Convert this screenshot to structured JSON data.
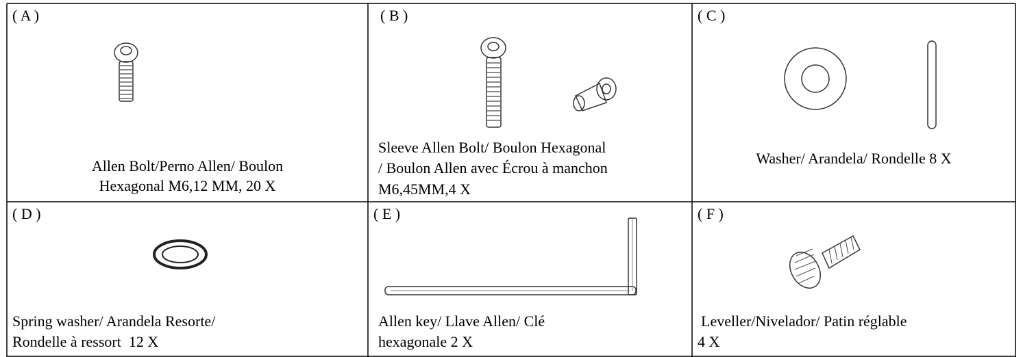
{
  "cells": [
    {
      "label": "( A )",
      "lines": [
        "Allen Bolt/Perno Allen/ Boulon",
        "Hexagonal M6,12 MM, 20 X"
      ]
    },
    {
      "label": "( B )",
      "lines": [
        "Sleeve Allen Bolt/ Boulon Hexagonal",
        "/ Boulon Allen avec Écrou à manchon",
        "M6,45MM,4 X"
      ]
    },
    {
      "label": "( C )",
      "lines": [
        "Washer/ Arandela/ Rondelle 8 X"
      ]
    },
    {
      "label": "( D )",
      "lines": [
        "Spring washer/ Arandela Resorte/",
        "Rondelle à ressort  12 X"
      ]
    },
    {
      "label": "( E )",
      "lines": [
        "Allen key/ Llave Allen/ Clé",
        "hexagonale 2 X"
      ]
    },
    {
      "label": "( F )",
      "lines": [
        "Leveller/Nivelador/ Patin réglable",
        "4 X"
      ]
    }
  ]
}
